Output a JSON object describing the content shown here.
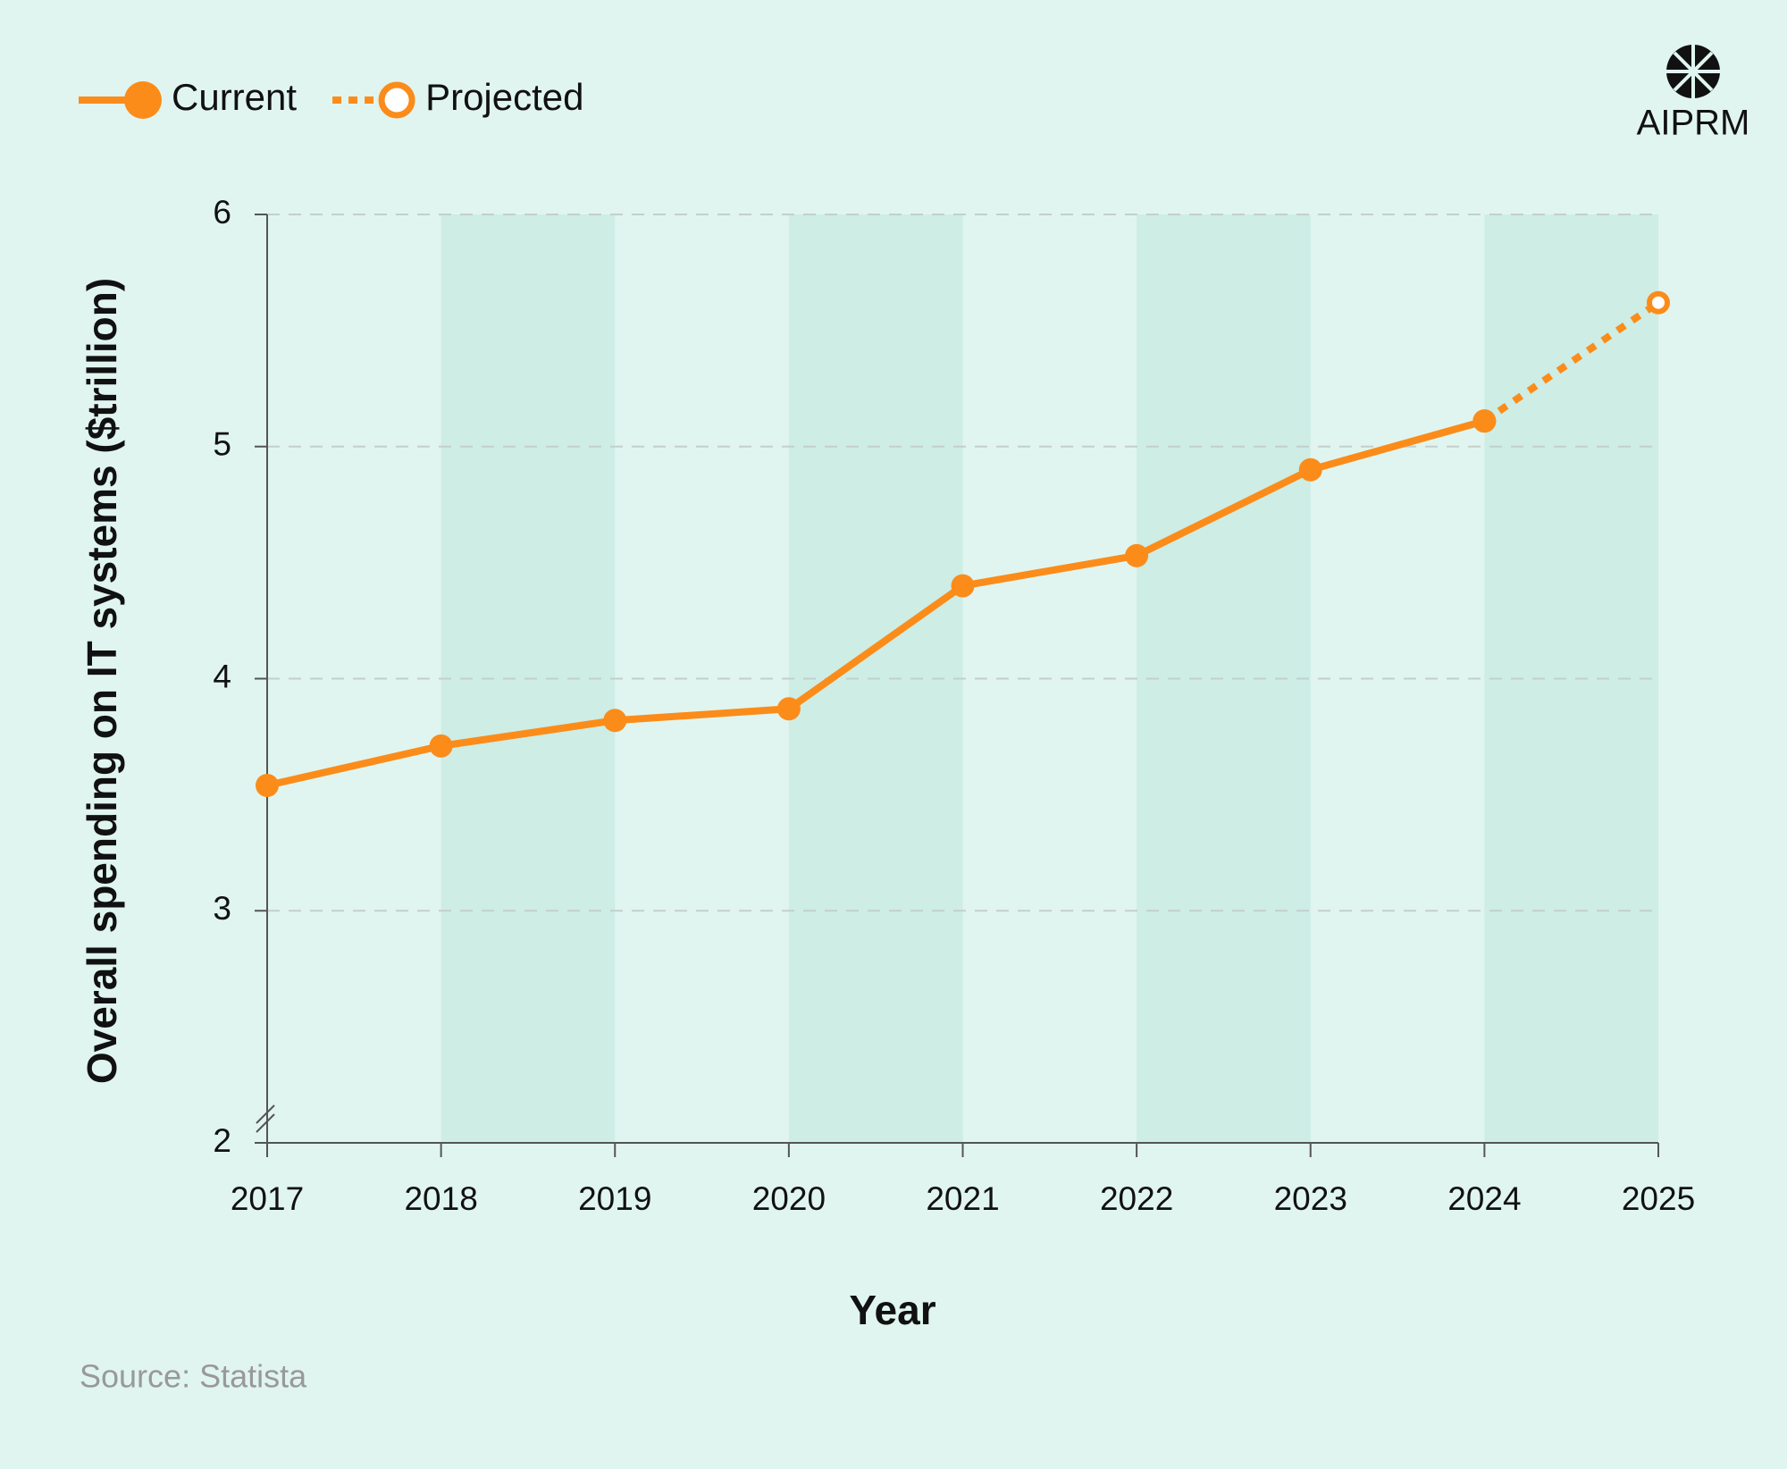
{
  "chart_data": {
    "type": "line",
    "brand": "AIPRM",
    "source": "Source: Statista",
    "x_label": "Year",
    "y_label": "Overall spending on IT systems ($trillion)",
    "categories": [
      "2017",
      "2018",
      "2019",
      "2020",
      "2021",
      "2022",
      "2023",
      "2024",
      "2025"
    ],
    "series": [
      {
        "name": "Current",
        "color": "#fb8c1a",
        "values": [
          3.54,
          3.71,
          3.82,
          3.87,
          4.4,
          4.53,
          4.9,
          5.11,
          null
        ]
      },
      {
        "name": "Projected",
        "color": "#fb8c1a",
        "values": [
          null,
          null,
          null,
          null,
          null,
          null,
          null,
          5.11,
          5.62
        ]
      }
    ],
    "ylim": [
      2,
      6
    ],
    "yticks": [
      2,
      3,
      4,
      5,
      6
    ],
    "grid": true,
    "legend": "top-left"
  }
}
